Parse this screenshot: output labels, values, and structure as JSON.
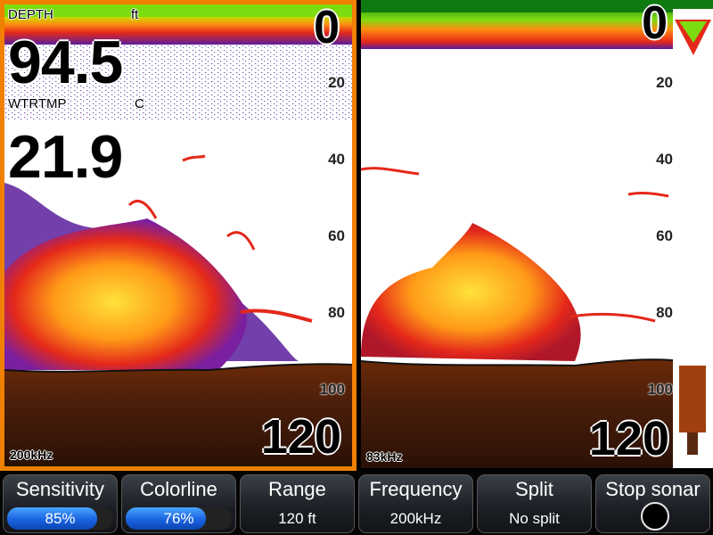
{
  "left_panel": {
    "depth_label": "DEPTH",
    "depth_unit": "ft",
    "depth_value": "94.5",
    "temp_label": "WTRTMP",
    "temp_unit": "C",
    "temp_value": "21.9",
    "frequency": "200kHz",
    "scale_top": "0",
    "scale_bottom": "120",
    "scale_ticks": [
      "20",
      "40",
      "60",
      "80",
      "100"
    ],
    "selected": true,
    "highlight_color": "#f08000"
  },
  "right_panel": {
    "frequency": "83kHz",
    "scale_top": "0",
    "scale_bottom": "120",
    "scale_ticks": [
      "20",
      "40",
      "60",
      "80",
      "100"
    ]
  },
  "toolbar": [
    {
      "label": "Sensitivity",
      "value": "85%",
      "kind": "bar",
      "level": 0.85
    },
    {
      "label": "Colorline",
      "value": "76%",
      "kind": "bar",
      "level": 0.76
    },
    {
      "label": "Range",
      "value": "120 ft",
      "kind": "text"
    },
    {
      "label": "Frequency",
      "value": "200kHz",
      "kind": "text"
    },
    {
      "label": "Split",
      "value": "No split",
      "kind": "text"
    },
    {
      "label": "Stop sonar",
      "value": "",
      "kind": "icon",
      "icon": "stop-circle-icon"
    }
  ],
  "colors": {
    "surface_green": "#7ddc10",
    "hot_yellow": "#ffe23a",
    "red": "#e4281a",
    "purple": "#5a1e9c",
    "bottom_brown": "#4a1e0a"
  }
}
